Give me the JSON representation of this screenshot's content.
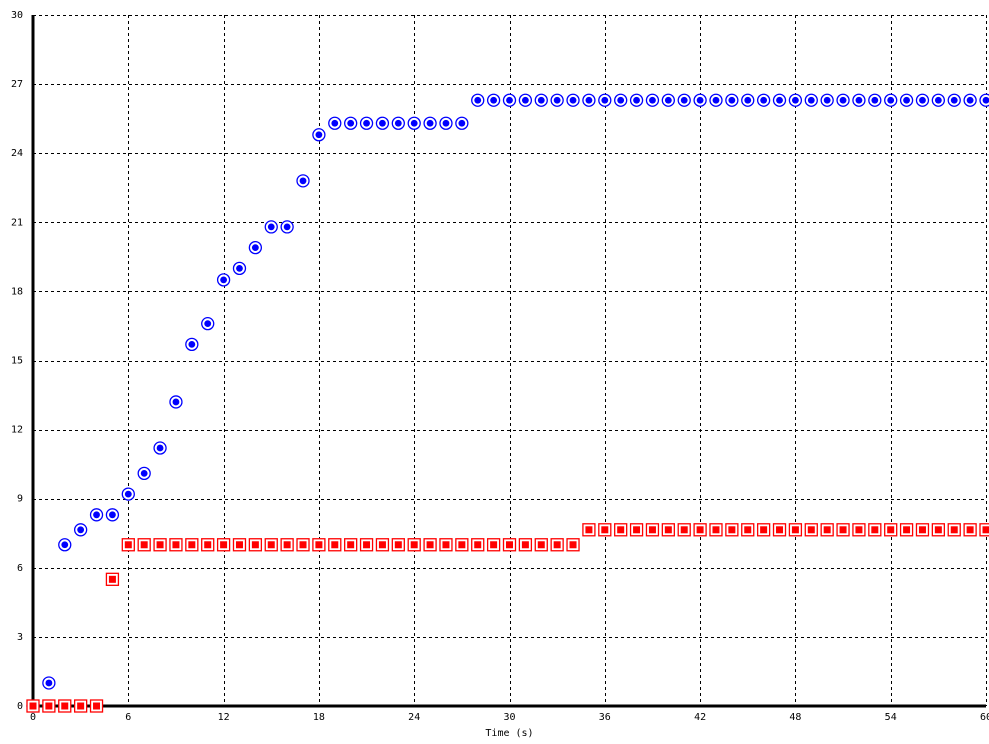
{
  "chart_data": {
    "type": "scatter",
    "title": "",
    "xlabel": "Time (s)",
    "ylabel": "",
    "xlim": [
      0,
      60
    ],
    "ylim": [
      0,
      30
    ],
    "xticks": [
      0,
      6,
      12,
      18,
      24,
      30,
      36,
      42,
      48,
      54,
      60
    ],
    "xtick_labels": [
      "0",
      "6",
      "12",
      "18",
      "24",
      "30",
      "36",
      "42",
      "48",
      "54",
      "60"
    ],
    "yticks": [
      0,
      3,
      6,
      9,
      12,
      15,
      18,
      21,
      24,
      27,
      30
    ],
    "ytick_labels": [
      "0",
      "3",
      "6",
      "9",
      "12",
      "15",
      "18",
      "21",
      "24",
      "27",
      "30"
    ],
    "grid": true,
    "legend": "none",
    "series": [
      {
        "marker": "circle",
        "color": "#0000ff",
        "x": [
          0,
          1,
          2,
          3,
          4,
          5,
          6,
          7,
          8,
          9,
          10,
          11,
          12,
          13,
          14,
          15,
          16,
          17,
          18,
          19,
          20,
          21,
          22,
          23,
          24,
          25,
          26,
          27,
          28,
          29,
          30,
          31,
          32,
          33,
          34,
          35,
          36,
          37,
          38,
          39,
          40,
          41,
          42,
          43,
          44,
          45,
          46,
          47,
          48,
          49,
          50,
          51,
          52,
          53,
          54,
          55,
          56,
          57,
          58,
          59,
          60
        ],
        "y": [
          0,
          1.0,
          7.0,
          7.65,
          8.3,
          8.3,
          9.2,
          10.1,
          11.2,
          13.2,
          15.7,
          16.6,
          18.5,
          19.0,
          19.9,
          20.8,
          20.8,
          22.8,
          24.8,
          25.3,
          25.3,
          25.3,
          25.3,
          25.3,
          25.3,
          25.3,
          25.3,
          25.3,
          26.3,
          26.3,
          26.3,
          26.3,
          26.3,
          26.3,
          26.3,
          26.3,
          26.3,
          26.3,
          26.3,
          26.3,
          26.3,
          26.3,
          26.3,
          26.3,
          26.3,
          26.3,
          26.3,
          26.3,
          26.3,
          26.3,
          26.3,
          26.3,
          26.3,
          26.3,
          26.3,
          26.3,
          26.3,
          26.3,
          26.3,
          26.3,
          26.3
        ]
      },
      {
        "marker": "square",
        "color": "#ff0000",
        "x": [
          0,
          1,
          2,
          3,
          4,
          5,
          6,
          7,
          8,
          9,
          10,
          11,
          12,
          13,
          14,
          15,
          16,
          17,
          18,
          19,
          20,
          21,
          22,
          23,
          24,
          25,
          26,
          27,
          28,
          29,
          30,
          31,
          32,
          33,
          34,
          35,
          36,
          37,
          38,
          39,
          40,
          41,
          42,
          43,
          44,
          45,
          46,
          47,
          48,
          49,
          50,
          51,
          52,
          53,
          54,
          55,
          56,
          57,
          58,
          59,
          60
        ],
        "y": [
          0,
          0,
          0,
          0,
          0,
          5.5,
          7,
          7,
          7,
          7,
          7,
          7,
          7,
          7,
          7,
          7,
          7,
          7,
          7,
          7,
          7,
          7,
          7,
          7,
          7,
          7,
          7,
          7,
          7,
          7,
          7,
          7,
          7,
          7,
          7,
          7.65,
          7.65,
          7.65,
          7.65,
          7.65,
          7.65,
          7.65,
          7.65,
          7.65,
          7.65,
          7.65,
          7.65,
          7.65,
          7.65,
          7.65,
          7.65,
          7.65,
          7.65,
          7.65,
          7.65,
          7.65,
          7.65,
          7.65,
          7.65,
          7.65,
          7.65
        ]
      }
    ]
  }
}
